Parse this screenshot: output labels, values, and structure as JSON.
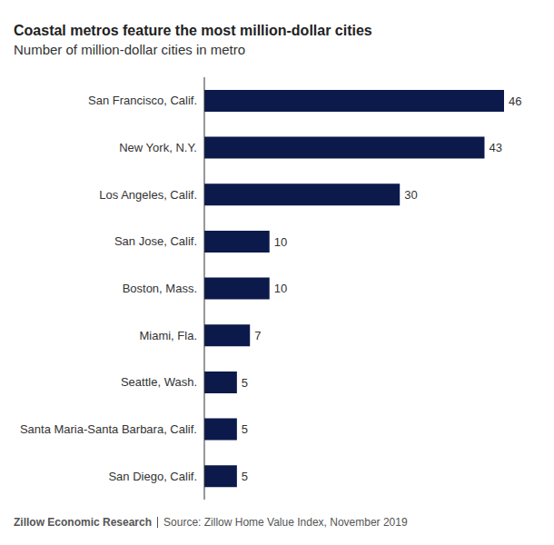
{
  "chart_data": {
    "type": "bar",
    "title": "Coastal metros feature the most million-dollar cities",
    "subtitle": "Number of million-dollar cities in metro",
    "categories": [
      "San Francisco, Calif.",
      "New York, N.Y.",
      "Los Angeles, Calif.",
      "San Jose, Calif.",
      "Boston, Mass.",
      "Miami, Fla.",
      "Seattle, Wash.",
      "Santa Maria-Santa Barbara, Calif.",
      "San Diego, Calif."
    ],
    "values": [
      46,
      43,
      30,
      10,
      10,
      7,
      5,
      5,
      5
    ],
    "color": "#0c1a4b",
    "orientation": "horizontal",
    "xlim": [
      0,
      46
    ],
    "data_labels": true,
    "tick_labels": "y",
    "grid": false,
    "footer": [
      "Zillow Economic Research",
      "Source: Zillow Home Value Index, November 2019"
    ]
  }
}
